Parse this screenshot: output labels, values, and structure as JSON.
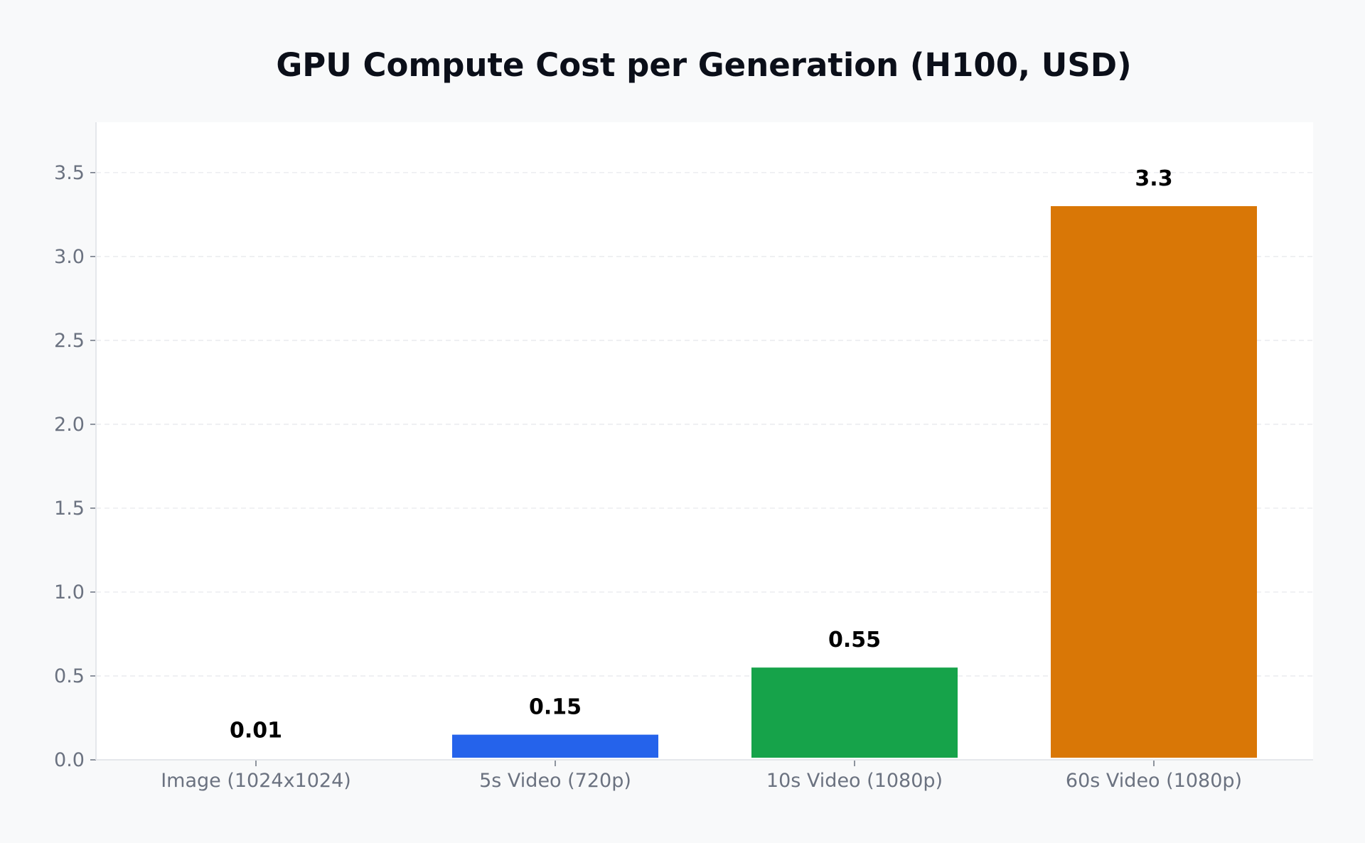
{
  "chart_data": {
    "type": "bar",
    "title": "GPU Compute Cost per Generation (H100, USD)",
    "xlabel": "",
    "ylabel": "",
    "categories": [
      "Image (1024x1024)",
      "5s Video (720p)",
      "10s Video (1080p)",
      "60s Video (1080p)"
    ],
    "values": [
      0.01,
      0.15,
      0.55,
      3.3
    ],
    "value_labels": [
      "0.01",
      "0.15",
      "0.55",
      "3.3"
    ],
    "colors": [
      "#ffffff",
      "#2563eb",
      "#16a34a",
      "#d97706"
    ],
    "ylim": [
      0,
      3.8
    ],
    "yticks": [
      0.0,
      0.5,
      1.0,
      1.5,
      2.0,
      2.5,
      3.0,
      3.5
    ],
    "ytick_labels": [
      "0.0",
      "0.5",
      "1.0",
      "1.5",
      "2.0",
      "2.5",
      "3.0",
      "3.5"
    ],
    "grid": true,
    "legend": "none"
  }
}
